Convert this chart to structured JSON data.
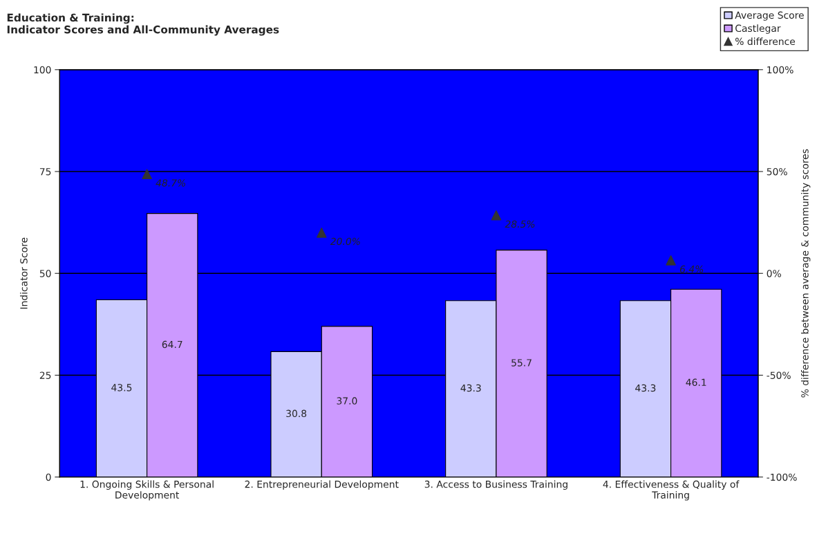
{
  "chart_data": {
    "type": "bar",
    "title": "Education & Training:\nIndicator Scores and All-Community Averages",
    "categories": [
      "1. Ongoing Skills & Personal\nDevelopment",
      "2. Entrepreneurial Development",
      "3. Access to Business Training",
      "4. Effectiveness & Quality of\nTraining"
    ],
    "series": [
      {
        "name": "Average Score",
        "color": "#ccccff",
        "values": [
          43.5,
          30.8,
          43.3,
          43.3
        ],
        "value_labels": [
          "43.5",
          "30.8",
          "43.3",
          "43.3"
        ]
      },
      {
        "name": "Castlegar",
        "color": "#cc99ff",
        "values": [
          64.7,
          37.0,
          55.7,
          46.1
        ],
        "value_labels": [
          "64.7",
          "37.0",
          "55.7",
          "46.1"
        ]
      },
      {
        "name": "% difference",
        "type": "scatter",
        "axis": "y2",
        "color": "#333333",
        "marker": "triangle",
        "values": [
          48.7,
          20.0,
          28.5,
          6.4
        ],
        "value_labels": [
          "48.7%",
          "20.0%",
          "28.5%",
          "6.4%"
        ]
      }
    ],
    "ylabel": "Indicator Score",
    "y2label": "% difference between average & community scores",
    "ylim": [
      0,
      100
    ],
    "yticks": [
      0,
      25,
      50,
      75,
      100
    ],
    "y2lim": [
      -100,
      100
    ],
    "y2ticks": [
      {
        "value": -100,
        "label": "-100%"
      },
      {
        "value": -50,
        "label": "-50%"
      },
      {
        "value": 0,
        "label": "0%"
      },
      {
        "value": 50,
        "label": "50%"
      },
      {
        "value": 100,
        "label": "100%"
      }
    ],
    "grid": "y",
    "legend": "top right",
    "data_labels": true
  }
}
